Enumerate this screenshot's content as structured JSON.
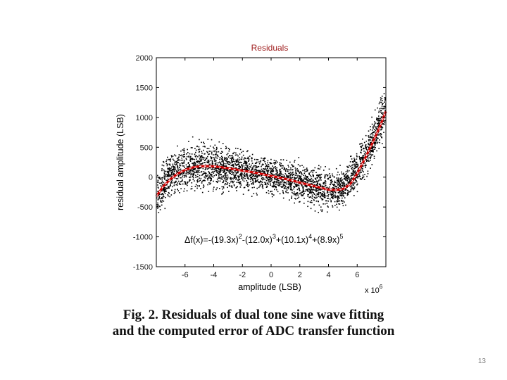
{
  "slide": {
    "caption_line1": "Fig. 2.  Residuals of dual tone sine wave fitting",
    "caption_line2": "and the computed error of ADC transfer function",
    "page_number": "13"
  },
  "chart_data": {
    "type": "scatter",
    "title": "Residuals",
    "xlabel": "amplitude (LSB)",
    "ylabel": "residual amplitude (LSB)",
    "x_multiplier": "x 10",
    "x_multiplier_exponent": "6",
    "xlim": [
      -8,
      8
    ],
    "ylim": [
      -1500,
      2000
    ],
    "x_ticks": [
      -6,
      -4,
      -2,
      0,
      2,
      4,
      6
    ],
    "y_ticks": [
      2000,
      1500,
      1000,
      500,
      0,
      -500,
      -1000,
      -1500
    ],
    "grid": false,
    "annotation": {
      "prefix": "Δf(x)=-(19.3x)",
      "e1": "2",
      "t2": "-(12.0x)",
      "e2": "3",
      "t3": "+(10.1x)",
      "e3": "4",
      "t4": "+(8.9x)",
      "e4": "5"
    },
    "series": [
      {
        "kind": "scatter",
        "color": "#000000",
        "x": [
          -8,
          -7,
          -6,
          -5,
          -4,
          -3,
          -2,
          -1,
          0,
          1,
          2,
          3,
          4,
          5,
          6,
          7,
          8
        ],
        "y_center": [
          -300,
          80,
          170,
          200,
          180,
          150,
          110,
          70,
          20,
          -30,
          -90,
          -150,
          -200,
          -180,
          150,
          550,
          1200
        ],
        "y_spread": [
          350,
          350,
          380,
          400,
          380,
          350,
          340,
          320,
          300,
          300,
          300,
          300,
          300,
          300,
          330,
          350,
          380
        ]
      },
      {
        "kind": "fit-line",
        "color": "#cc0000",
        "dash_color": "#ffffff",
        "x": [
          -8,
          -7.5,
          -7,
          -6.5,
          -6,
          -5.5,
          -5,
          -4.5,
          -4,
          -3.5,
          -3,
          -2.5,
          -2,
          -1.5,
          -1,
          -0.5,
          0,
          0.5,
          1,
          1.5,
          2,
          2.5,
          3,
          3.5,
          4,
          4.5,
          5,
          5.5,
          6,
          6.5,
          7,
          7.5,
          8
        ],
        "y": [
          -320,
          -150,
          -30,
          60,
          120,
          160,
          180,
          185,
          180,
          165,
          150,
          130,
          110,
          90,
          70,
          45,
          20,
          -5,
          -30,
          -60,
          -90,
          -120,
          -150,
          -180,
          -210,
          -215,
          -200,
          -120,
          60,
          290,
          540,
          800,
          1100
        ]
      }
    ]
  }
}
